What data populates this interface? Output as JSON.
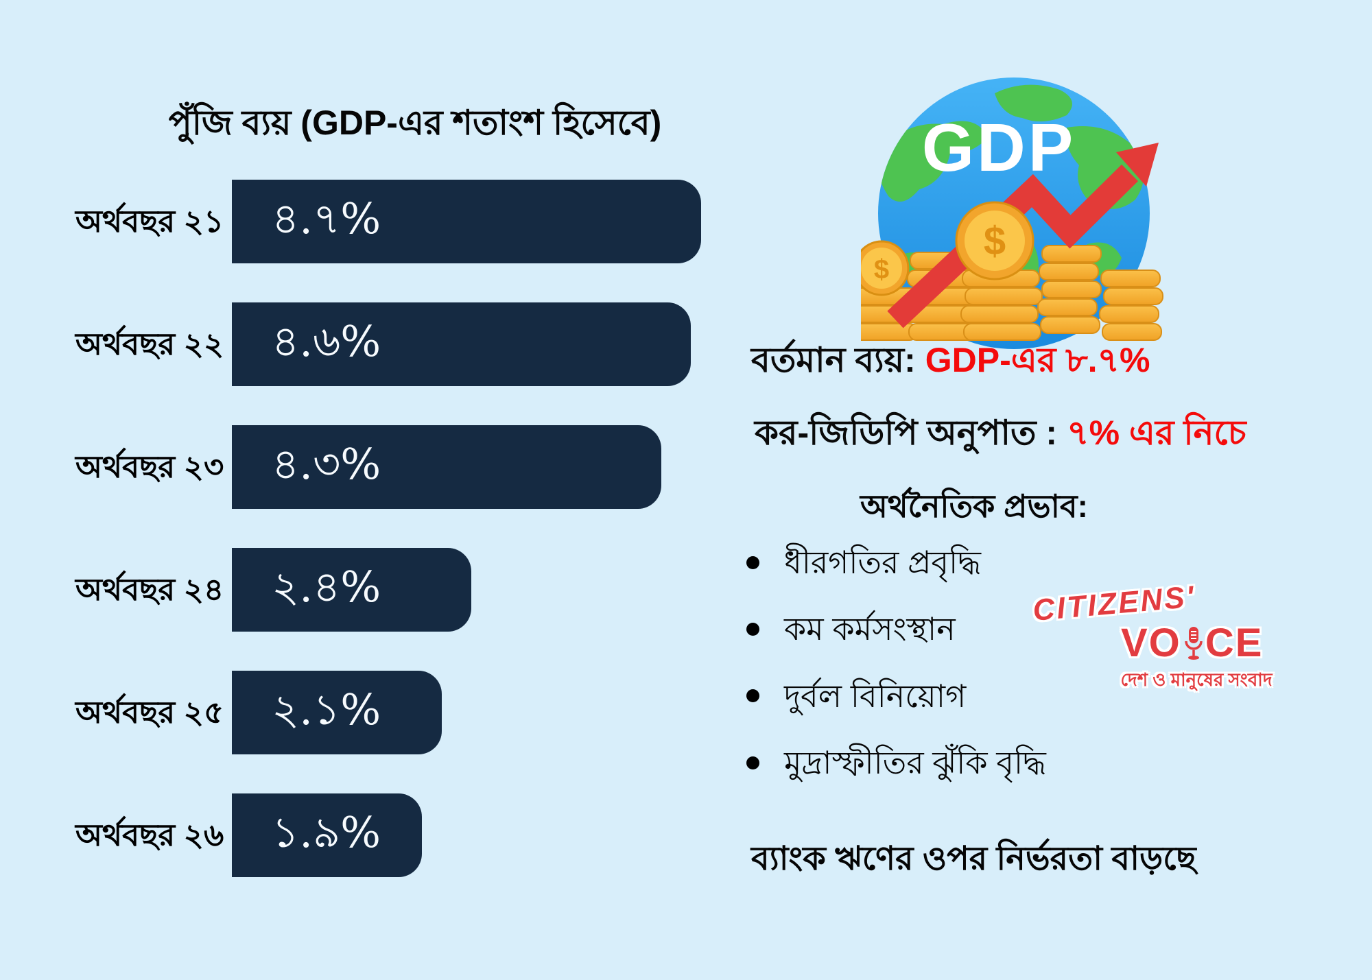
{
  "chart_data": {
    "type": "bar",
    "orientation": "horizontal",
    "title": "পুঁজি ব্যয় (GDP-এর শতাংশ হিসেবে)",
    "categories": [
      "অর্থবছর ২১",
      "অর্থবছর ২২",
      "অর্থবছর ২৩",
      "অর্থবছর ২৪",
      "অর্থবছর ২৫",
      "অর্থবছর ২৬"
    ],
    "values": [
      4.7,
      4.6,
      4.3,
      2.4,
      2.1,
      1.9
    ],
    "value_labels": [
      "৪.৭%",
      "৪.৬%",
      "৪.৩%",
      "২.৪%",
      "২.১%",
      "১.৯%"
    ],
    "xlim": [
      0,
      4.7
    ],
    "grid": false,
    "legend": false,
    "value_label_position": "inside-start",
    "bar_color": "#152a42"
  },
  "illustration": {
    "globe_text": "GDP",
    "currency_symbol": "$"
  },
  "stats": {
    "current_expenditure": {
      "label": "বর্তমান ব্যয়:",
      "value": "GDP-এর ৮.৭%"
    },
    "tax_gdp_ratio": {
      "label": "কর-জিডিপি অনুপাত :",
      "value": "৭% এর নিচে"
    }
  },
  "impact": {
    "heading": "অর্থনৈতিক প্রভাব:",
    "items": [
      "ধীরগতির প্রবৃদ্ধি",
      "কম কর্মসংস্থান",
      "দুর্বল বিনিয়োগ",
      "মুদ্রাস্ফীতির ঝুঁকি বৃদ্ধি"
    ]
  },
  "footer_note": "ব্যাংক ঋণের ওপর নির্ভরতা বাড়ছে",
  "logo": {
    "line1": "CITIZENS'",
    "voice_prefix": "VO",
    "voice_suffix": "CE",
    "tagline": "দেশ ও মানুষের সংবাদ"
  },
  "colors": {
    "background": "#d8eefa",
    "bar": "#152a42",
    "accent_red": "#f40b0b",
    "logo_red": "#e23c40",
    "globe_blue": "#2fa1ee",
    "land_green": "#4ec351",
    "coin_gold": "#f6ae33",
    "arrow_red": "#e33b38"
  }
}
